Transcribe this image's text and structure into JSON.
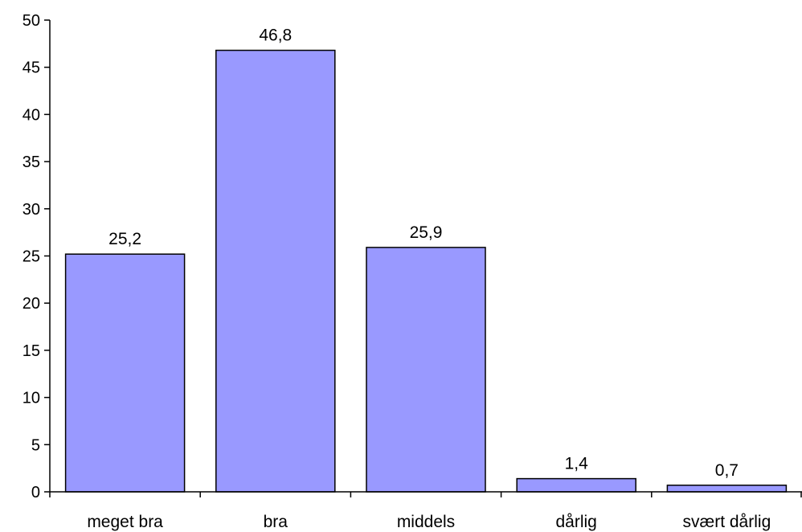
{
  "chart_data": {
    "type": "bar",
    "categories": [
      "meget bra",
      "bra",
      "middels",
      "dårlig",
      "svært dårlig"
    ],
    "values": [
      25.2,
      46.8,
      25.9,
      1.4,
      0.7
    ],
    "value_labels": [
      "25,2",
      "46,8",
      "25,9",
      "1,4",
      "0,7"
    ],
    "title": "",
    "xlabel": "",
    "ylabel": "",
    "ylim": [
      0,
      50
    ],
    "yticks": [
      0,
      5,
      10,
      15,
      20,
      25,
      30,
      35,
      40,
      45,
      50
    ],
    "grid": false,
    "legend": "none",
    "colors": {
      "bar_fill": "#9999ff",
      "bar_stroke": "#000000",
      "axis": "#000000"
    }
  }
}
